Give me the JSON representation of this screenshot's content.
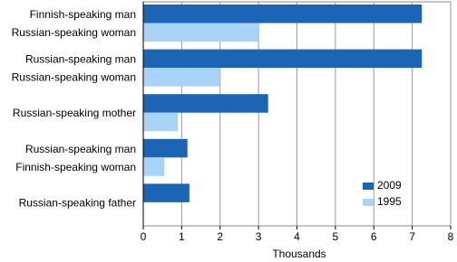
{
  "chart_data": {
    "type": "bar",
    "orientation": "horizontal",
    "categories": [
      [
        "Finnish-speaking man",
        "Russian-speaking woman"
      ],
      [
        "Russian-speaking man",
        "Russian-speaking woman"
      ],
      [
        "Russian-speaking mother"
      ],
      [
        "Russian-speaking man",
        "Finnish-speaking woman"
      ],
      [
        "Russian-speaking father"
      ]
    ],
    "series": [
      {
        "name": "2009",
        "color": "#1c64b4",
        "values": [
          7.25,
          7.25,
          3.25,
          1.15,
          1.2
        ]
      },
      {
        "name": "1995",
        "color": "#a9d3f7",
        "values": [
          3.0,
          2.0,
          0.9,
          0.55,
          null
        ]
      }
    ],
    "xlabel": "Thousands",
    "xlim": [
      0,
      8
    ],
    "xticks": [
      0,
      1,
      2,
      3,
      4,
      5,
      6,
      7,
      8
    ],
    "grid": true
  }
}
